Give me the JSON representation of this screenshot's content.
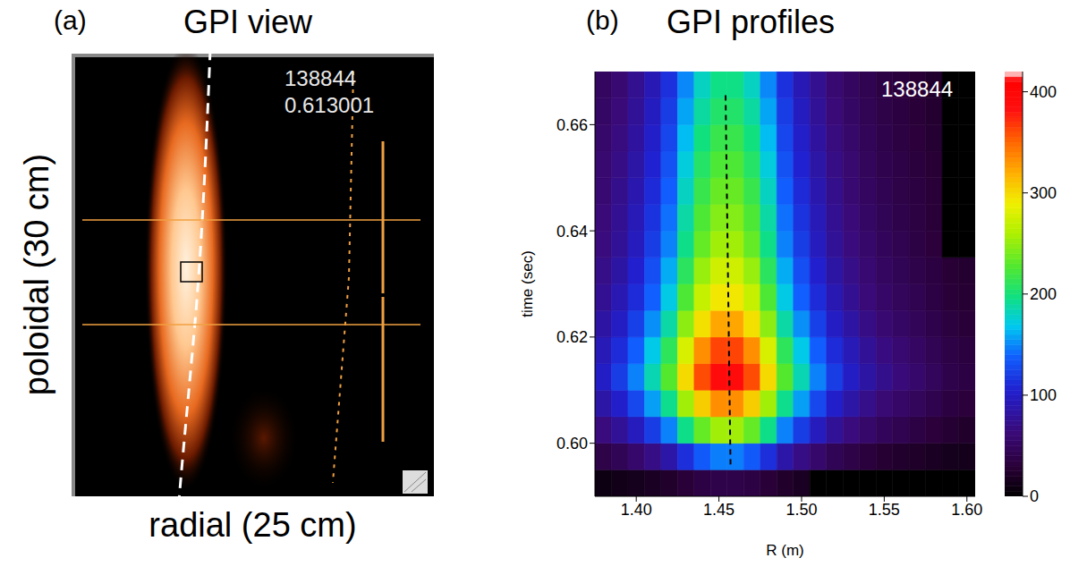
{
  "image_panel": {
    "panel_label": "(a)",
    "title": "GPI view",
    "y_label": "poloidal (30 cm)",
    "x_label": "radial (25 cm)",
    "annotations": [
      "138844",
      "0.613001"
    ]
  },
  "chart_data": {
    "type": "heatmap",
    "panel_label": "(b)",
    "title": "GPI profiles",
    "annotation": "138844",
    "x_label": "R (m)",
    "y_label": "time (sec)",
    "x": [
      1.38,
      1.39,
      1.4,
      1.41,
      1.42,
      1.43,
      1.44,
      1.45,
      1.46,
      1.47,
      1.48,
      1.49,
      1.5,
      1.51,
      1.52,
      1.53,
      1.54,
      1.55,
      1.56,
      1.57,
      1.58,
      1.59,
      1.6
    ],
    "y": [
      0.5925,
      0.5975,
      0.6025,
      0.6075,
      0.6125,
      0.6175,
      0.6225,
      0.6275,
      0.6325,
      0.6375,
      0.6425,
      0.6475,
      0.6525,
      0.6575,
      0.6625,
      0.6675
    ],
    "values": [
      [
        10,
        12,
        15,
        18,
        23,
        30,
        36,
        39,
        39,
        36,
        30,
        23,
        18,
        0,
        0,
        0,
        0,
        0,
        0,
        0,
        0,
        0,
        0
      ],
      [
        38,
        45,
        56,
        69,
        86,
        113,
        135,
        147,
        147,
        135,
        113,
        86,
        69,
        56,
        45,
        38,
        32,
        27,
        24,
        21,
        18,
        15,
        14
      ],
      [
        65,
        78,
        96,
        120,
        148,
        195,
        234,
        255,
        255,
        234,
        195,
        148,
        120,
        96,
        78,
        65,
        55,
        47,
        42,
        36,
        31,
        26,
        23
      ],
      [
        85,
        102,
        126,
        156,
        194,
        255,
        306,
        333,
        333,
        306,
        255,
        194,
        156,
        126,
        102,
        85,
        71,
        61,
        54,
        48,
        41,
        34,
        31
      ],
      [
        100,
        120,
        148,
        184,
        228,
        300,
        360,
        392,
        392,
        360,
        300,
        228,
        184,
        148,
        120,
        100,
        84,
        72,
        64,
        56,
        48,
        40,
        36
      ],
      [
        93,
        111,
        137,
        170,
        211,
        278,
        333,
        363,
        363,
        333,
        278,
        211,
        170,
        137,
        111,
        93,
        78,
        67,
        59,
        52,
        44,
        37,
        33
      ],
      [
        83,
        99,
        122,
        152,
        188,
        248,
        297,
        323,
        323,
        297,
        248,
        188,
        152,
        122,
        99,
        83,
        69,
        59,
        53,
        46,
        40,
        33,
        30
      ],
      [
        75,
        90,
        111,
        138,
        171,
        225,
        270,
        294,
        294,
        270,
        225,
        171,
        138,
        111,
        90,
        75,
        63,
        54,
        48,
        42,
        36,
        30,
        27
      ],
      [
        70,
        84,
        104,
        129,
        160,
        210,
        252,
        274,
        274,
        252,
        210,
        160,
        129,
        104,
        84,
        70,
        59,
        50,
        45,
        39,
        34,
        28,
        25
      ],
      [
        65,
        78,
        96,
        120,
        148,
        195,
        234,
        255,
        255,
        234,
        195,
        148,
        120,
        96,
        78,
        65,
        55,
        47,
        42,
        36,
        31,
        0,
        0
      ],
      [
        63,
        75,
        93,
        115,
        143,
        188,
        225,
        245,
        245,
        225,
        188,
        143,
        115,
        93,
        75,
        63,
        53,
        45,
        40,
        35,
        30,
        0,
        0
      ],
      [
        60,
        72,
        89,
        110,
        137,
        180,
        216,
        235,
        235,
        216,
        180,
        137,
        110,
        89,
        72,
        60,
        50,
        43,
        38,
        34,
        29,
        0,
        0
      ],
      [
        58,
        69,
        85,
        106,
        131,
        173,
        207,
        225,
        225,
        207,
        173,
        131,
        106,
        85,
        69,
        58,
        48,
        41,
        37,
        32,
        28,
        0,
        0
      ],
      [
        55,
        66,
        81,
        101,
        125,
        165,
        198,
        216,
        216,
        198,
        165,
        125,
        101,
        81,
        66,
        55,
        46,
        40,
        35,
        31,
        26,
        0,
        0
      ],
      [
        53,
        63,
        78,
        97,
        120,
        158,
        189,
        206,
        206,
        189,
        158,
        120,
        97,
        78,
        63,
        53,
        44,
        38,
        34,
        29,
        25,
        0,
        0
      ],
      [
        50,
        60,
        74,
        92,
        114,
        150,
        180,
        196,
        196,
        180,
        150,
        114,
        92,
        74,
        60,
        50,
        42,
        36,
        32,
        28,
        24,
        0,
        0
      ]
    ],
    "xlim": [
      1.375,
      1.605
    ],
    "ylim": [
      0.59,
      0.67
    ],
    "xticks": [
      {
        "value": 1.4,
        "label": "1.40"
      },
      1.45,
      {
        "value": 1.5,
        "label": "1.50"
      },
      1.55,
      {
        "value": 1.6,
        "label": "1.60"
      }
    ],
    "yticks": [
      {
        "value": 0.6,
        "label": "0.60"
      },
      0.62,
      0.64,
      0.66
    ],
    "colorbar": {
      "range": [
        0,
        420
      ],
      "ticks": [
        0,
        100,
        200,
        300,
        400
      ]
    },
    "peak_line": {
      "x": [
        1.457,
        1.454
      ],
      "y": [
        0.596,
        0.666
      ],
      "line_style": "dashed",
      "color": "#000000"
    }
  }
}
